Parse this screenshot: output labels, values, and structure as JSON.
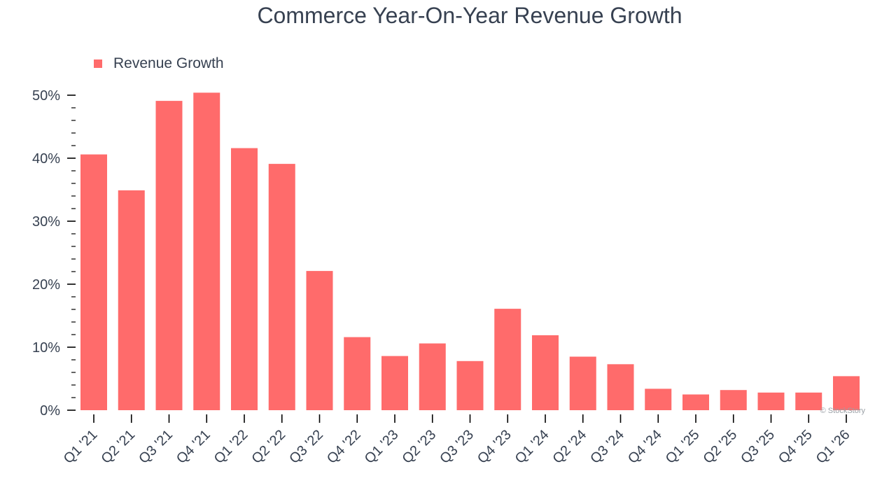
{
  "chart_data": {
    "type": "bar",
    "title": "Commerce Year-On-Year Revenue Growth",
    "xlabel": "",
    "ylabel": "",
    "categories": [
      "Q1 '21",
      "Q2 '21",
      "Q3 '21",
      "Q4 '21",
      "Q1 '22",
      "Q2 '22",
      "Q3 '22",
      "Q4 '22",
      "Q1 '23",
      "Q2 '23",
      "Q3 '23",
      "Q4 '23",
      "Q1 '24",
      "Q2 '24",
      "Q3 '24",
      "Q4 '24",
      "Q1 '25",
      "Q2 '25",
      "Q3 '25",
      "Q4 '25",
      "Q1 '26"
    ],
    "series": [
      {
        "name": "Revenue Growth",
        "color": "#ff6b6b",
        "values": [
          40.6,
          34.9,
          49.1,
          50.4,
          41.6,
          39.1,
          22.1,
          11.6,
          8.6,
          10.6,
          7.8,
          16.1,
          11.9,
          8.5,
          7.3,
          3.4,
          2.5,
          3.2,
          2.8,
          2.8,
          5.4
        ]
      }
    ],
    "ylim": [
      0,
      50
    ],
    "yticks": [
      0,
      10,
      20,
      30,
      40,
      50
    ],
    "ytick_labels": [
      "0%",
      "10%",
      "20%",
      "30%",
      "40%",
      "50%"
    ],
    "legend_position": "top-left",
    "grid": false
  },
  "watermark": "© StockStory",
  "colors": {
    "bar": "#ff6b6b",
    "text": "#374151",
    "axis": "#000000"
  }
}
